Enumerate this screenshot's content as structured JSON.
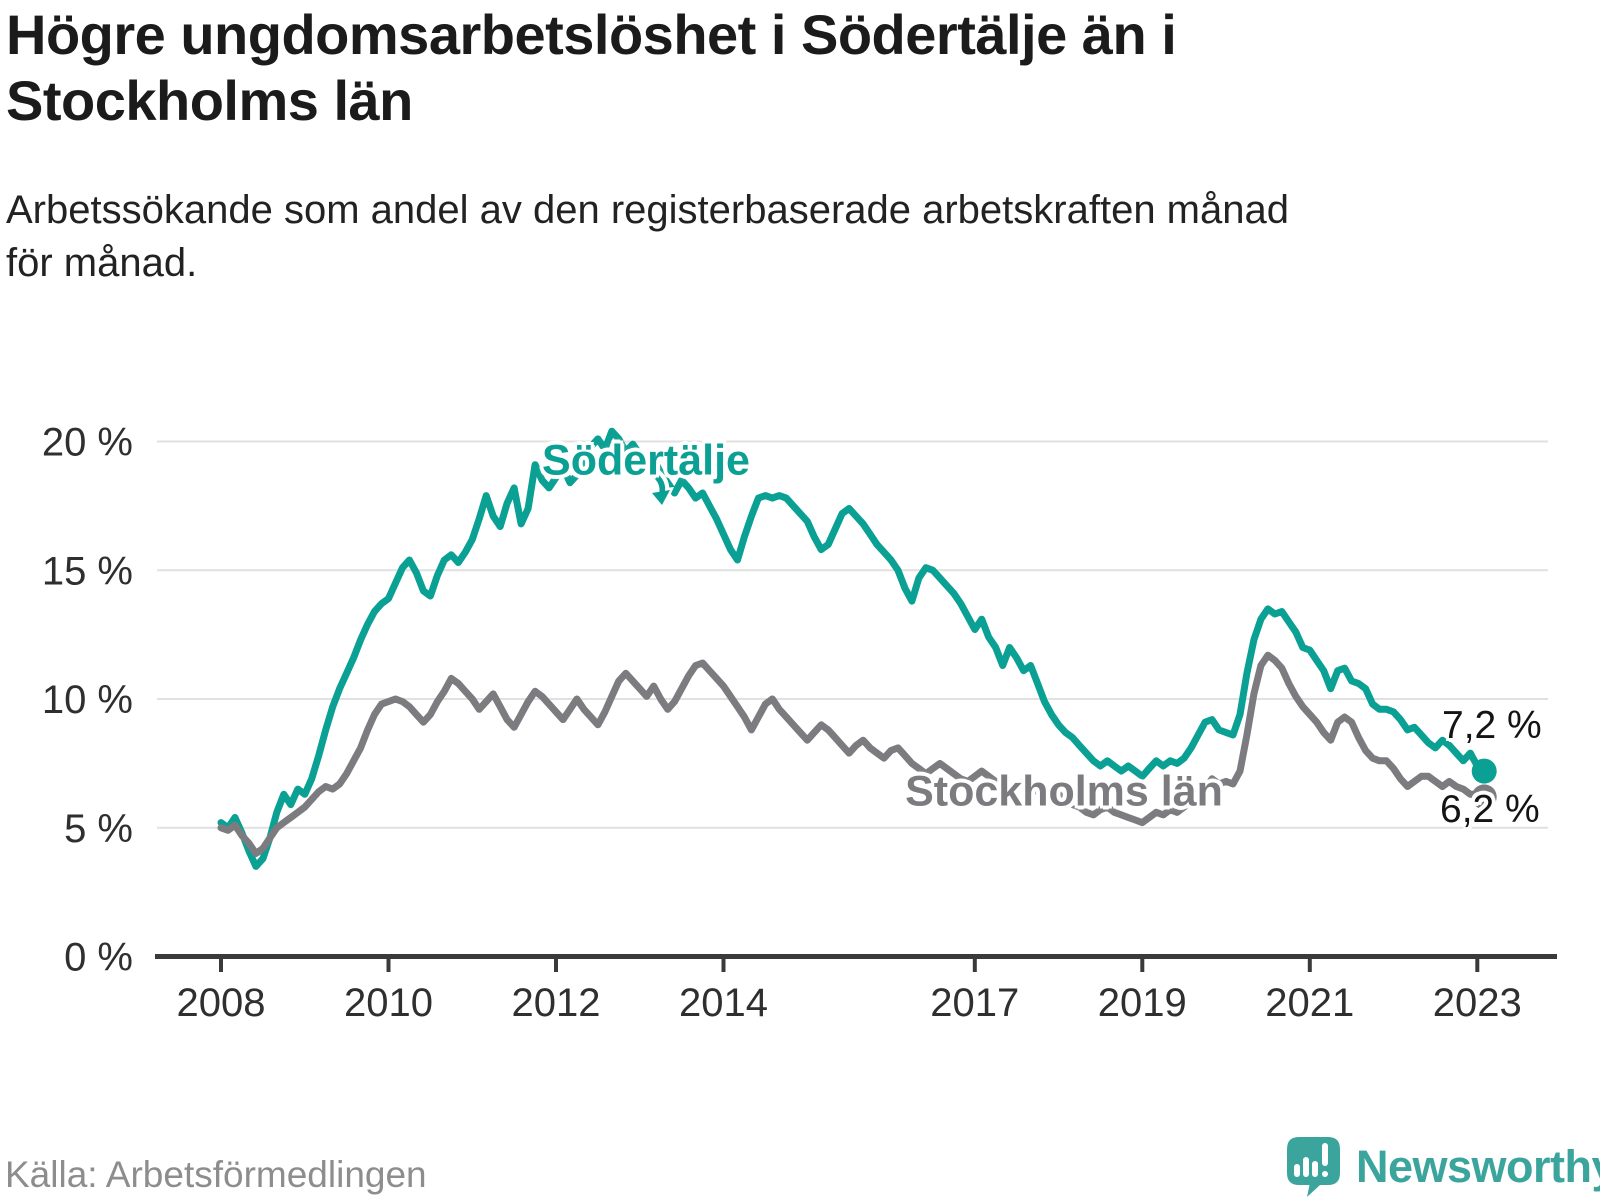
{
  "header": {
    "title": "Högre ungdomsarbetslöshet i Södertälje än i\nStockholms län",
    "subtitle": "Arbetssökande som andel av den registerbaserade arbetskraften månad\nför månad."
  },
  "footer": {
    "source": "Källa: Arbetsförmedlingen",
    "brand": "Newsworthy"
  },
  "colors": {
    "sodertalje": "#0ba094",
    "stockholm": "#7c7c80",
    "grid": "#e1e1e1",
    "axis": "#3a3a3a",
    "tick_label": "#2f2f2f",
    "brand_teal": "#3ba59d"
  },
  "chart_data": {
    "type": "line",
    "unit": "%",
    "interval": "monthly",
    "x_start": "2008-01",
    "x_end": "2023-02",
    "grid": "horizontal",
    "ylim": [
      0,
      21.5
    ],
    "y_ticks": [
      {
        "label": "0 %",
        "value": 0
      },
      {
        "label": "5 %",
        "value": 5
      },
      {
        "label": "10 %",
        "value": 10
      },
      {
        "label": "15 %",
        "value": 15
      },
      {
        "label": "20 %",
        "value": 20
      }
    ],
    "x_ticks": [
      {
        "label": "2008",
        "year": 2008
      },
      {
        "label": "2010",
        "year": 2010
      },
      {
        "label": "2012",
        "year": 2012
      },
      {
        "label": "2014",
        "year": 2014
      },
      {
        "label": "2017",
        "year": 2017
      },
      {
        "label": "2019",
        "year": 2019
      },
      {
        "label": "2021",
        "year": 2021
      },
      {
        "label": "2023",
        "year": 2023
      }
    ],
    "series": [
      {
        "name": "Södertälje",
        "color": "#0ba094",
        "end_label": "7,2 %",
        "end_value": 7.2,
        "values": [
          5.2,
          5.0,
          5.4,
          4.8,
          4.1,
          3.5,
          3.8,
          4.6,
          5.6,
          6.3,
          5.9,
          6.5,
          6.3,
          6.9,
          7.8,
          8.8,
          9.7,
          10.4,
          11.0,
          11.6,
          12.3,
          12.9,
          13.4,
          13.7,
          13.9,
          14.5,
          15.1,
          15.4,
          14.9,
          14.2,
          14.0,
          14.8,
          15.4,
          15.6,
          15.3,
          15.7,
          16.2,
          17.0,
          17.9,
          17.1,
          16.7,
          17.6,
          18.2,
          16.8,
          17.4,
          19.1,
          18.5,
          18.2,
          18.6,
          19.0,
          18.4,
          18.7,
          19.3,
          19.8,
          20.1,
          19.7,
          20.4,
          20.1,
          19.6,
          19.9,
          19.5,
          19.1,
          19.3,
          18.8,
          18.4,
          18.0,
          18.5,
          18.2,
          17.8,
          18.0,
          17.5,
          17.0,
          16.4,
          15.8,
          15.4,
          16.3,
          17.1,
          17.8,
          17.9,
          17.8,
          17.9,
          17.8,
          17.5,
          17.2,
          16.9,
          16.3,
          15.8,
          16.0,
          16.6,
          17.2,
          17.4,
          17.1,
          16.8,
          16.4,
          16.0,
          15.7,
          15.4,
          15.0,
          14.3,
          13.8,
          14.7,
          15.1,
          15.0,
          14.7,
          14.4,
          14.1,
          13.7,
          13.2,
          12.7,
          13.1,
          12.4,
          12.0,
          11.3,
          12.0,
          11.6,
          11.1,
          11.3,
          10.6,
          9.9,
          9.4,
          9.0,
          8.7,
          8.5,
          8.2,
          7.9,
          7.6,
          7.4,
          7.6,
          7.4,
          7.2,
          7.4,
          7.2,
          7.0,
          7.3,
          7.6,
          7.4,
          7.6,
          7.5,
          7.7,
          8.1,
          8.6,
          9.1,
          9.2,
          8.8,
          8.7,
          8.6,
          9.4,
          11.0,
          12.3,
          13.1,
          13.5,
          13.3,
          13.4,
          13.0,
          12.6,
          12.0,
          11.9,
          11.5,
          11.1,
          10.4,
          11.1,
          11.2,
          10.7,
          10.6,
          10.4,
          9.8,
          9.6,
          9.6,
          9.5,
          9.2,
          8.8,
          8.9,
          8.6,
          8.3,
          8.1,
          8.4,
          8.2,
          7.9,
          7.6,
          7.9,
          7.4,
          7.2
        ]
      },
      {
        "name": "Stockholms län",
        "color": "#7c7c80",
        "end_label": "6,2 %",
        "end_value": 6.2,
        "values": [
          5.0,
          4.9,
          5.1,
          4.7,
          4.4,
          4.0,
          4.2,
          4.6,
          5.0,
          5.2,
          5.4,
          5.6,
          5.8,
          6.1,
          6.4,
          6.6,
          6.5,
          6.7,
          7.1,
          7.6,
          8.1,
          8.8,
          9.4,
          9.8,
          9.9,
          10.0,
          9.9,
          9.7,
          9.4,
          9.1,
          9.4,
          9.9,
          10.3,
          10.8,
          10.6,
          10.3,
          10.0,
          9.6,
          9.9,
          10.2,
          9.7,
          9.2,
          8.9,
          9.4,
          9.9,
          10.3,
          10.1,
          9.8,
          9.5,
          9.2,
          9.6,
          10.0,
          9.6,
          9.3,
          9.0,
          9.5,
          10.1,
          10.7,
          11.0,
          10.7,
          10.4,
          10.1,
          10.5,
          10.0,
          9.6,
          9.9,
          10.4,
          10.9,
          11.3,
          11.4,
          11.1,
          10.8,
          10.5,
          10.1,
          9.7,
          9.3,
          8.8,
          9.3,
          9.8,
          10.0,
          9.6,
          9.3,
          9.0,
          8.7,
          8.4,
          8.7,
          9.0,
          8.8,
          8.5,
          8.2,
          7.9,
          8.2,
          8.4,
          8.1,
          7.9,
          7.7,
          8.0,
          8.1,
          7.8,
          7.5,
          7.3,
          7.1,
          7.3,
          7.5,
          7.3,
          7.1,
          6.9,
          6.8,
          7.0,
          7.2,
          7.0,
          6.8,
          6.6,
          6.4,
          6.6,
          6.8,
          6.6,
          6.4,
          6.2,
          6.1,
          6.3,
          6.1,
          5.9,
          5.8,
          5.6,
          5.5,
          5.7,
          5.8,
          5.6,
          5.5,
          5.4,
          5.3,
          5.2,
          5.4,
          5.6,
          5.5,
          5.7,
          5.6,
          5.8,
          6.0,
          6.2,
          6.5,
          6.9,
          6.7,
          6.8,
          6.7,
          7.2,
          8.6,
          10.2,
          11.3,
          11.7,
          11.5,
          11.2,
          10.6,
          10.1,
          9.7,
          9.4,
          9.1,
          8.7,
          8.4,
          9.1,
          9.3,
          9.1,
          8.5,
          8.0,
          7.7,
          7.6,
          7.6,
          7.3,
          6.9,
          6.6,
          6.8,
          7.0,
          7.0,
          6.8,
          6.6,
          6.8,
          6.6,
          6.5,
          6.3,
          6.3,
          6.2
        ]
      }
    ]
  }
}
